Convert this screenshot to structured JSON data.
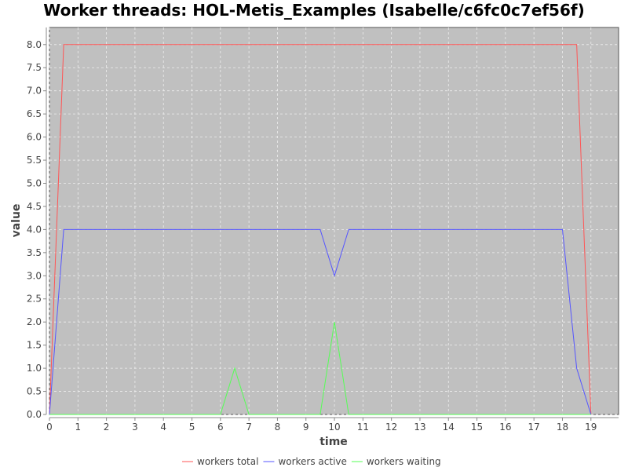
{
  "chart_data": {
    "type": "line",
    "title": "Worker threads: HOL-Metis_Examples (Isabelle/c6fc0c7ef56f)",
    "xlabel": "time",
    "ylabel": "value",
    "xlim": [
      0,
      19.97
    ],
    "ylim": [
      0,
      8.37
    ],
    "xticks": [
      0,
      1,
      2,
      3,
      4,
      5,
      6,
      7,
      8,
      9,
      10,
      11,
      12,
      13,
      14,
      15,
      16,
      17,
      18,
      19
    ],
    "yticks": [
      "0.0",
      "0.5",
      "1.0",
      "1.5",
      "2.0",
      "2.5",
      "3.0",
      "3.5",
      "4.0",
      "4.5",
      "5.0",
      "5.5",
      "6.0",
      "6.5",
      "7.0",
      "7.5",
      "8.0"
    ],
    "grid": true,
    "legend_position": "bottom",
    "background": "#c0c0c0",
    "series": [
      {
        "name": "workers total",
        "color": "#ff5555",
        "x": [
          0,
          0.5,
          18.5,
          19
        ],
        "y": [
          0,
          8,
          8,
          0
        ]
      },
      {
        "name": "workers active",
        "color": "#5555ff",
        "x": [
          0,
          0.5,
          9.5,
          10,
          10.5,
          18,
          18.5,
          19
        ],
        "y": [
          0,
          4,
          4,
          3,
          4,
          4,
          1,
          0
        ]
      },
      {
        "name": "workers waiting",
        "color": "#55ff55",
        "x": [
          0,
          6,
          6.5,
          7,
          9.5,
          10,
          10.5,
          19
        ],
        "y": [
          0,
          0,
          1,
          0,
          0,
          2,
          0,
          0
        ]
      }
    ]
  }
}
